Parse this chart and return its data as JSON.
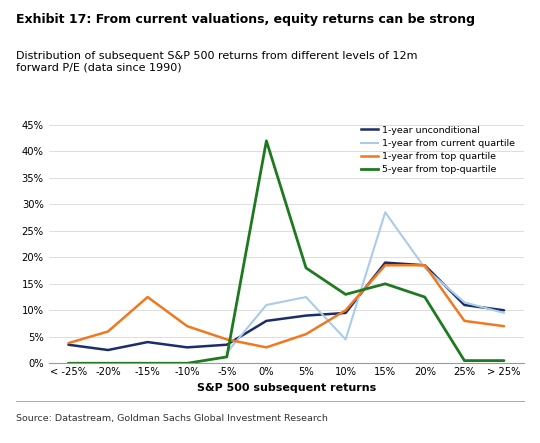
{
  "x_labels": [
    "< -25%",
    "-20%",
    "-15%",
    "-10%",
    "-5%",
    "0%",
    "5%",
    "10%",
    "15%",
    "20%",
    "25%",
    "> 25%"
  ],
  "x_positions": [
    0,
    1,
    2,
    3,
    4,
    5,
    6,
    7,
    8,
    9,
    10,
    11
  ],
  "series_order": [
    "unconditional",
    "current_quartile",
    "top_quartile_1y",
    "top_quartile_5y"
  ],
  "series": {
    "unconditional": {
      "label": "1-year unconditional",
      "color": "#1b2d6b",
      "linewidth": 1.8,
      "values": [
        0.035,
        0.025,
        0.04,
        0.03,
        0.035,
        0.08,
        0.09,
        0.095,
        0.19,
        0.185,
        0.11,
        0.1
      ]
    },
    "current_quartile": {
      "label": "1-year from current quartile",
      "color": "#aacce8",
      "linewidth": 1.5,
      "values": [
        null,
        null,
        null,
        null,
        0.02,
        0.11,
        0.125,
        0.045,
        0.285,
        0.18,
        0.115,
        0.095
      ]
    },
    "top_quartile_1y": {
      "label": "1-year from top quartile",
      "color": "#f07820",
      "linewidth": 1.8,
      "values": [
        0.038,
        0.06,
        0.125,
        0.07,
        0.045,
        0.03,
        0.055,
        0.1,
        0.185,
        0.185,
        0.08,
        0.07
      ]
    },
    "top_quartile_5y": {
      "label": "5-year from top-quartile",
      "color": "#1e7a1e",
      "linewidth": 2.0,
      "values": [
        0.0,
        0.0,
        0.0,
        0.0,
        0.012,
        0.42,
        0.18,
        0.13,
        0.15,
        0.125,
        0.005,
        0.005
      ]
    }
  },
  "title_bold": "Exhibit 17: From current valuations, equity returns can be strong",
  "title_sub": "Distribution of subsequent S&P 500 returns from different levels of 12m\nforward P/E (data since 1990)",
  "xlabel": "S&P 500 subsequent returns",
  "source": "Source: Datastream, Goldman Sachs Global Investment Research",
  "ylim": [
    0,
    0.46
  ],
  "yticks": [
    0.0,
    0.05,
    0.1,
    0.15,
    0.2,
    0.25,
    0.3,
    0.35,
    0.4,
    0.45
  ],
  "background_color": "#ffffff",
  "grid_color": "#d0d0d0"
}
